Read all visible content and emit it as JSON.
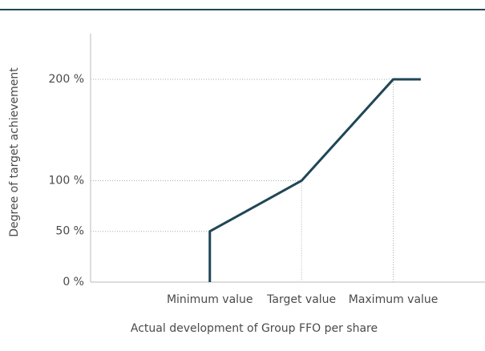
{
  "chart_data": {
    "type": "line",
    "y_label": "Degree of target achievement",
    "x_label": "Actual development of Group FFO per share",
    "x": [
      1,
      1,
      2,
      3,
      3.3
    ],
    "series": [
      {
        "color": "#1f4656",
        "values": [
          0,
          50,
          100,
          200,
          200
        ]
      }
    ],
    "xlim": [
      -0.3,
      4
    ],
    "xticks": [
      {
        "value": 1,
        "label": "Minimum value"
      },
      {
        "value": 2,
        "label": "Target value"
      },
      {
        "value": 3,
        "label": "Maximum value"
      }
    ],
    "ylim": [
      0,
      245
    ],
    "yticks": [
      {
        "value": 0,
        "label": "0 %"
      },
      {
        "value": 50,
        "label": "50 %"
      },
      {
        "value": 100,
        "label": "100 %"
      },
      {
        "value": 200,
        "label": "200 %"
      }
    ]
  }
}
